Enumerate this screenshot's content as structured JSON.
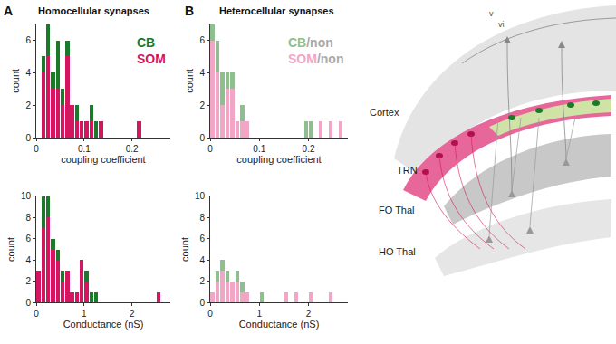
{
  "panels": [
    {
      "label": "A",
      "title": "Homocellular synapses"
    },
    {
      "label": "B",
      "title": "Heterocellular synapses"
    }
  ],
  "chart_data": [
    {
      "type": "bar",
      "stacked": true,
      "grid": false,
      "legend": "top right",
      "x_label": "coupling coefficient",
      "y_label": "count",
      "bins": [
        0,
        0.01,
        0.02,
        0.03,
        0.04,
        0.05,
        0.06,
        0.07,
        0.08,
        0.09,
        0.1,
        0.11,
        0.12,
        0.13,
        0.14,
        0.15,
        0.16,
        0.17,
        0.18,
        0.19,
        0.2,
        0.21,
        0.22
      ],
      "xlim": [
        0,
        0.28
      ],
      "xticks": [
        0,
        0.1,
        0.2
      ],
      "ylim": [
        0,
        7
      ],
      "yticks": [
        0,
        2,
        4,
        6
      ],
      "series": [
        {
          "name": "SOM",
          "color": "#d4155f",
          "values": [
            0,
            4,
            5,
            3,
            3,
            2,
            5,
            2,
            1,
            1,
            1,
            1,
            0,
            1,
            0,
            0,
            0,
            0,
            0,
            0,
            0,
            1
          ]
        },
        {
          "name": "CB",
          "color": "#1b7a2a",
          "values": [
            0,
            1,
            2,
            1,
            3,
            1,
            1,
            0,
            1,
            0,
            0,
            1,
            1,
            0,
            0,
            0,
            0,
            0,
            0,
            0,
            0,
            0
          ]
        }
      ]
    },
    {
      "type": "bar",
      "stacked": true,
      "grid": false,
      "x_label": "Conductance (nS)",
      "y_label": "count",
      "bins": [
        0,
        0.1,
        0.2,
        0.3,
        0.4,
        0.5,
        0.6,
        0.7,
        0.8,
        0.9,
        1,
        1.1,
        1.2,
        1.3,
        1.4,
        1.5,
        1.6,
        1.7,
        1.8,
        1.9,
        2,
        2.1,
        2.2,
        2.3,
        2.4,
        2.5,
        2.6
      ],
      "xlim": [
        0,
        2.8
      ],
      "xticks": [
        0,
        1,
        2
      ],
      "ylim": [
        0,
        10
      ],
      "yticks": [
        0,
        2,
        4,
        6,
        8,
        10
      ],
      "series": [
        {
          "name": "SOM",
          "color": "#d4155f",
          "values": [
            3,
            7,
            8,
            5,
            4,
            2,
            3,
            1,
            1,
            4,
            2,
            0,
            0,
            0,
            0,
            0,
            0,
            0,
            0,
            0,
            0,
            0,
            0,
            0,
            0,
            1
          ]
        },
        {
          "name": "CB",
          "color": "#1b7a2a",
          "values": [
            0,
            3,
            2,
            1,
            1,
            1,
            0,
            0,
            0,
            0,
            1,
            1,
            1,
            0,
            0,
            0,
            0,
            0,
            0,
            0,
            0,
            0,
            0,
            0,
            0,
            0
          ]
        }
      ]
    },
    {
      "type": "bar",
      "stacked": true,
      "grid": false,
      "legend": "top right",
      "x_label": "coupling coefficient",
      "y_label": "count",
      "bins": [
        0,
        0.01,
        0.02,
        0.03,
        0.04,
        0.05,
        0.06,
        0.07,
        0.08,
        0.09,
        0.1,
        0.11,
        0.12,
        0.13,
        0.14,
        0.15,
        0.16,
        0.17,
        0.18,
        0.19,
        0.2,
        0.21,
        0.22,
        0.23,
        0.24,
        0.25,
        0.26,
        0.27
      ],
      "xlim": [
        0,
        0.28
      ],
      "xticks": [
        0,
        0.1,
        0.2
      ],
      "ylim": [
        0,
        7
      ],
      "yticks": [
        0,
        2,
        4,
        6
      ],
      "series": [
        {
          "name": "SOM/non",
          "color": "#f2a6c6",
          "values": [
            6,
            4,
            2,
            3,
            3,
            1,
            1,
            1,
            0,
            0,
            0,
            0,
            0,
            0,
            0,
            0,
            0,
            0,
            0,
            0,
            0,
            0,
            1,
            0,
            1,
            0,
            1
          ]
        },
        {
          "name": "CB/non",
          "color": "#8fbf8f",
          "values": [
            1,
            2,
            2,
            1,
            1,
            0,
            1,
            0,
            0,
            0,
            0,
            0,
            0,
            0,
            0,
            0,
            0,
            0,
            0,
            1,
            1,
            0,
            0,
            0,
            0,
            0,
            0
          ]
        }
      ]
    },
    {
      "type": "bar",
      "stacked": true,
      "grid": false,
      "x_label": "Conductance (nS)",
      "y_label": "count",
      "bins": [
        0,
        0.1,
        0.2,
        0.3,
        0.4,
        0.5,
        0.6,
        0.7,
        0.8,
        0.9,
        1,
        1.1,
        1.2,
        1.3,
        1.4,
        1.5,
        1.6,
        1.7,
        1.8,
        1.9,
        2,
        2.1,
        2.2,
        2.3,
        2.4,
        2.5
      ],
      "xlim": [
        0,
        2.8
      ],
      "xticks": [
        0,
        1,
        2
      ],
      "ylim": [
        0,
        10
      ],
      "yticks": [
        0,
        2,
        4,
        6,
        8,
        10
      ],
      "series": [
        {
          "name": "SOM/non",
          "color": "#f2a6c6",
          "values": [
            1,
            2,
            3,
            2,
            2,
            2,
            1,
            1,
            0,
            0,
            0,
            0,
            0,
            0,
            0,
            1,
            0,
            1,
            0,
            0,
            1,
            0,
            0,
            0,
            1
          ]
        },
        {
          "name": "CB/non",
          "color": "#8fbf8f",
          "values": [
            0,
            1,
            1,
            1,
            0,
            1,
            1,
            0,
            0,
            0,
            1,
            0,
            0,
            0,
            0,
            0,
            0,
            0,
            0,
            0,
            0,
            0,
            0,
            0,
            0
          ]
        }
      ]
    }
  ],
  "diagram": {
    "layers": [
      "v",
      "vi"
    ],
    "regions": [
      "Cortex",
      "TRN",
      "FO Thal",
      "HO Thal"
    ]
  }
}
